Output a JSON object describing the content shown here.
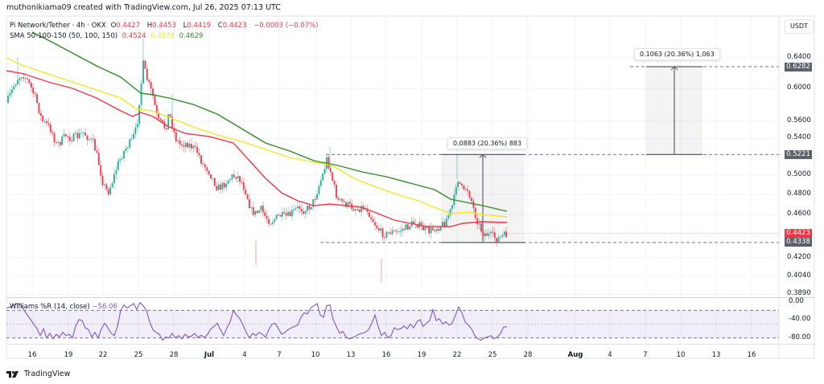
{
  "header": {
    "credit": "muthonikiama09 created with TradingView.com, Jul 26, 2025 07:13 UTC"
  },
  "symbol_legend": {
    "title": "Pi Network/Tether · 4h · OKX",
    "open_label": "O",
    "open": "0.4427",
    "high_label": "H",
    "high": "0.4453",
    "low_label": "L",
    "low": "0.4419",
    "close_label": "C",
    "close": "0.4423",
    "change": "−0.0003 (−0.07%)"
  },
  "sma_legend": {
    "title": "SMA 50-100-150 (50, 100, 150)",
    "sma50": "0.4524",
    "sma100": "0.4579",
    "sma150": "0.4629"
  },
  "williams_legend": {
    "title": "Williams %R (14, close)",
    "value": "−56.06"
  },
  "price_axis": {
    "currency": "USDT",
    "ticks": [
      {
        "label": "0.6400",
        "value": 0.64
      },
      {
        "label": "0.6000",
        "value": 0.6
      },
      {
        "label": "0.5600",
        "value": 0.56
      },
      {
        "label": "0.5400",
        "value": 0.54
      },
      {
        "label": "0.5000",
        "value": 0.5
      },
      {
        "label": "0.4800",
        "value": 0.48
      },
      {
        "label": "0.4600",
        "value": 0.46
      },
      {
        "label": "0.4200",
        "value": 0.42
      },
      {
        "label": "0.4040",
        "value": 0.404
      },
      {
        "label": "0.3890",
        "value": 0.389
      }
    ],
    "tags": [
      {
        "label": "0.6282",
        "kind": "measure"
      },
      {
        "label": "0.5221",
        "kind": "measure"
      },
      {
        "label": "0.4423",
        "kind": "last-price"
      },
      {
        "label": "0.4338",
        "kind": "measure"
      }
    ]
  },
  "oscillator_axis": {
    "ticks": [
      "0.00",
      "-40.00",
      "-80.00"
    ]
  },
  "time_axis": {
    "ticks": [
      "16",
      "19",
      "22",
      "25",
      "28",
      "Jul",
      "4",
      "7",
      "10",
      "13",
      "16",
      "19",
      "22",
      "25",
      "28",
      "Aug",
      "4",
      "7",
      "10",
      "13",
      "16"
    ]
  },
  "measurements": [
    {
      "label": "0.0883 (20.36%) 883",
      "from": 0.4338,
      "to": 0.5221
    },
    {
      "label": "0.1063 (20.36%) 1,063",
      "from": 0.5221,
      "to": 0.6282
    }
  ],
  "footer": {
    "brand": "TradingView"
  },
  "colors": {
    "up": "#22ab94",
    "down": "#f23645",
    "sma50": "#f23645",
    "sma100": "#f5e52a",
    "sma150": "#2e8b22",
    "williams": "#7e57c2",
    "measure_tag": "#5d606b"
  },
  "chart_data": {
    "type": "candlestick",
    "title": "Pi Network/Tether · 4h · OKX",
    "xlabel": "",
    "ylabel": "USDT",
    "ylim": [
      0.389,
      0.66
    ],
    "y_scale": "log",
    "x_ticks": [
      "16",
      "19",
      "22",
      "25",
      "28",
      "Jul",
      "4",
      "7",
      "10",
      "13",
      "16",
      "19",
      "22",
      "25",
      "28",
      "Aug",
      "4",
      "7",
      "10",
      "13",
      "16"
    ],
    "last": {
      "open": 0.4427,
      "high": 0.4453,
      "low": 0.4419,
      "close": 0.4423
    },
    "series": [
      {
        "name": "Price (approx close path)",
        "x": [
          "Jun 14",
          "Jun 16",
          "Jun 19",
          "Jun 22",
          "Jun 25",
          "Jun 26",
          "Jun 28",
          "Jul 1",
          "Jul 4",
          "Jul 7",
          "Jul 10",
          "Jul 11",
          "Jul 13",
          "Jul 16",
          "Jul 19",
          "Jul 21",
          "Jul 22",
          "Jul 23",
          "Jul 25",
          "Jul 26"
        ],
        "values": [
          0.595,
          0.615,
          0.555,
          0.49,
          0.63,
          0.56,
          0.545,
          0.51,
          0.495,
          0.455,
          0.52,
          0.48,
          0.462,
          0.44,
          0.448,
          0.46,
          0.505,
          0.47,
          0.44,
          0.4423
        ]
      },
      {
        "name": "SMA 50",
        "values": [
          0.625,
          0.612,
          0.585,
          0.56,
          0.552,
          0.547,
          0.54,
          0.53,
          0.505,
          0.482,
          0.475,
          0.473,
          0.468,
          0.455,
          0.447,
          0.447,
          0.452,
          0.455,
          0.4524,
          0.4524
        ]
      },
      {
        "name": "SMA 100",
        "values": [
          0.65,
          0.635,
          0.615,
          0.595,
          0.578,
          0.57,
          0.56,
          0.545,
          0.53,
          0.515,
          0.505,
          0.502,
          0.497,
          0.487,
          0.475,
          0.463,
          0.462,
          0.46,
          0.4579,
          0.4579
        ]
      },
      {
        "name": "SMA 150",
        "values": [
          0.7,
          0.69,
          0.66,
          0.635,
          0.61,
          0.605,
          0.597,
          0.583,
          0.565,
          0.548,
          0.532,
          0.527,
          0.516,
          0.505,
          0.495,
          0.485,
          0.48,
          0.472,
          0.4629,
          0.4629
        ]
      },
      {
        "name": "Williams %R (14, close)",
        "values": [
          -20,
          -5,
          -75,
          -85,
          -5,
          -55,
          -70,
          -65,
          -70,
          -45,
          -10,
          -50,
          -80,
          -70,
          -45,
          -50,
          -10,
          -40,
          -80,
          -56.06
        ]
      }
    ],
    "annotations": [
      "Measure 0.4338 → 0.5221: 0.0883 (20.36%) 883",
      "Measure 0.5221 → 0.6282: 0.1063 (20.36%) 1,063"
    ]
  }
}
